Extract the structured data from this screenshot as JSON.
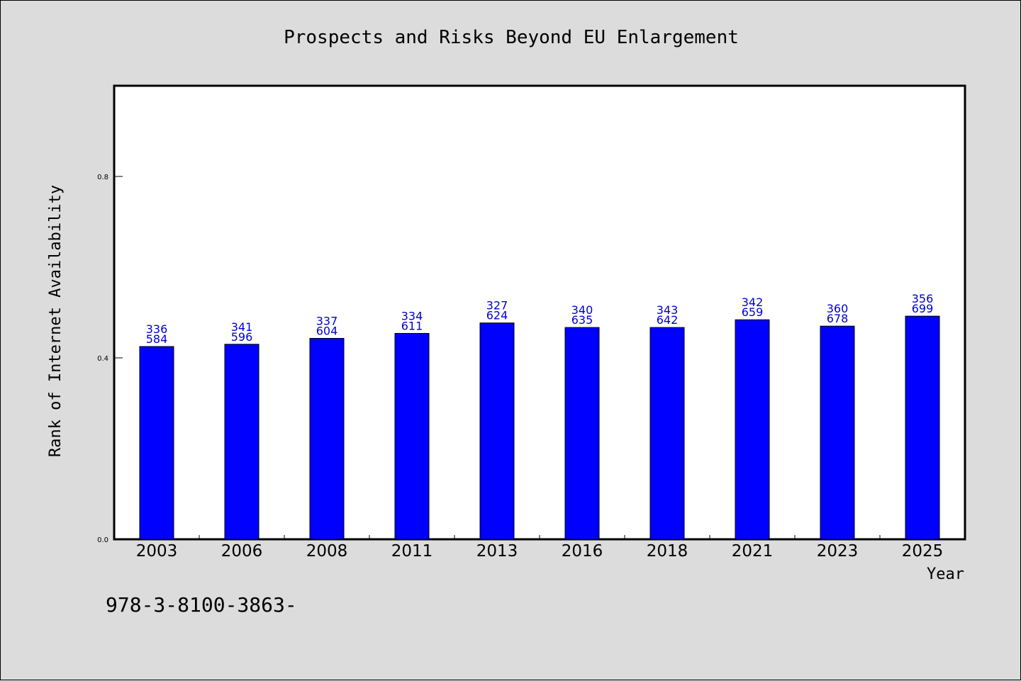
{
  "chart_data": {
    "type": "bar",
    "title": "Prospects and Risks Beyond EU Enlargement",
    "xlabel": "Year",
    "ylabel": "Rank of Internet Availability",
    "categories": [
      "2003",
      "2006",
      "2008",
      "2011",
      "2013",
      "2016",
      "2018",
      "2021",
      "2023",
      "2025"
    ],
    "values": [
      0.425,
      0.43,
      0.443,
      0.454,
      0.477,
      0.467,
      0.467,
      0.484,
      0.47,
      0.492
    ],
    "data_labels": [
      [
        "336",
        "584"
      ],
      [
        "341",
        "596"
      ],
      [
        "337",
        "604"
      ],
      [
        "334",
        "611"
      ],
      [
        "327",
        "624"
      ],
      [
        "340",
        "635"
      ],
      [
        "343",
        "642"
      ],
      [
        "342",
        "659"
      ],
      [
        "360",
        "678"
      ],
      [
        "356",
        "699"
      ]
    ],
    "yticks": [
      "0.0",
      "0.4",
      "0.8"
    ],
    "ytick_values": [
      0.0,
      0.4,
      0.8
    ],
    "ylim": [
      0,
      1.0
    ],
    "bar_color": "#0000ff",
    "label_color": "#0000cc",
    "grid": false,
    "legend": "none"
  },
  "footer": {
    "text": "978-3-8100-3863-"
  }
}
